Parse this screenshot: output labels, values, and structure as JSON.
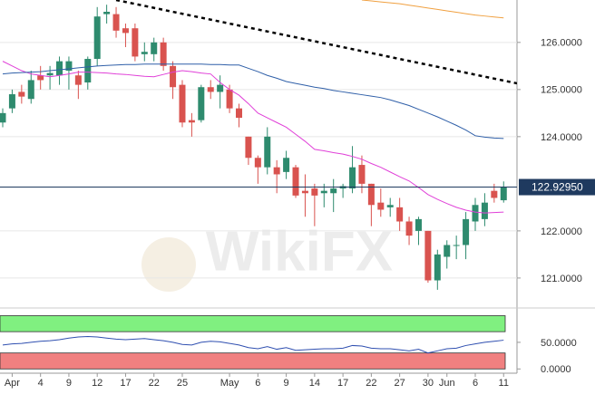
{
  "chart_data": [
    {
      "type": "candlestick",
      "categories": [
        null,
        "Apr",
        null,
        null,
        "4",
        null,
        null,
        "9",
        null,
        null,
        "12",
        null,
        null,
        "17",
        null,
        null,
        "22",
        null,
        null,
        "25",
        null,
        null,
        null,
        null,
        "May",
        null,
        null,
        "6",
        null,
        null,
        "9",
        null,
        null,
        "14",
        null,
        null,
        "17",
        null,
        null,
        "22",
        null,
        null,
        "27",
        null,
        null,
        "30",
        null,
        "Jun",
        null,
        null,
        "6",
        null,
        null,
        "11"
      ],
      "open": [
        124.3,
        124.6,
        124.95,
        124.8,
        125.3,
        125.3,
        125.3,
        125.4,
        125.3,
        125.15,
        125.65,
        126.6,
        126.6,
        126.3,
        126.3,
        125.75,
        125.75,
        126.0,
        125.5,
        125.1,
        124.35,
        124.35,
        125.05,
        124.95,
        125.0,
        124.6,
        124.0,
        123.55,
        123.35,
        123.35,
        123.25,
        123.35,
        122.85,
        122.9,
        122.8,
        122.8,
        122.9,
        122.9,
        123.4,
        123.0,
        122.6,
        122.5,
        122.5,
        122.2,
        122.0,
        122.0,
        120.95,
        121.45,
        121.7,
        121.7,
        122.2,
        122.25,
        122.85,
        122.65
      ],
      "high": [
        124.6,
        125.0,
        125.1,
        125.4,
        125.5,
        125.5,
        125.7,
        125.7,
        125.4,
        125.7,
        126.75,
        126.8,
        126.75,
        126.4,
        126.4,
        126.0,
        126.1,
        126.1,
        125.6,
        125.2,
        124.5,
        125.1,
        125.2,
        125.3,
        125.1,
        124.7,
        124.0,
        123.6,
        124.2,
        123.5,
        123.7,
        123.4,
        123.2,
        123.0,
        123.0,
        123.1,
        123.0,
        123.8,
        123.6,
        123.0,
        122.9,
        122.7,
        122.7,
        122.3,
        122.3,
        122.0,
        121.6,
        121.8,
        121.9,
        122.4,
        122.7,
        122.8,
        123.0,
        123.05
      ],
      "low": [
        124.2,
        124.5,
        124.7,
        124.7,
        125.0,
        125.0,
        125.1,
        125.0,
        124.8,
        125.0,
        125.5,
        126.4,
        126.1,
        125.9,
        125.6,
        125.6,
        125.6,
        125.4,
        124.8,
        124.2,
        124.0,
        124.3,
        124.8,
        124.6,
        124.5,
        124.2,
        123.4,
        123.0,
        123.2,
        122.8,
        123.1,
        122.7,
        122.3,
        122.1,
        122.5,
        122.4,
        122.7,
        122.8,
        122.8,
        122.1,
        122.3,
        122.3,
        122.0,
        121.7,
        121.7,
        120.9,
        120.75,
        121.2,
        121.4,
        121.4,
        122.0,
        122.1,
        122.6,
        122.6
      ],
      "close": [
        124.5,
        124.9,
        124.85,
        125.2,
        125.2,
        125.35,
        125.6,
        125.6,
        125.1,
        125.65,
        126.55,
        126.65,
        126.25,
        126.2,
        125.7,
        125.8,
        126.0,
        125.5,
        125.05,
        124.3,
        124.3,
        125.05,
        124.95,
        125.1,
        124.6,
        124.4,
        123.55,
        123.35,
        124.0,
        123.2,
        123.55,
        122.75,
        122.8,
        122.75,
        122.85,
        122.9,
        122.95,
        123.35,
        123.0,
        122.55,
        122.45,
        122.55,
        122.2,
        121.9,
        122.25,
        120.95,
        121.5,
        121.7,
        121.7,
        122.25,
        122.55,
        122.6,
        122.7,
        122.93
      ],
      "up_color": "#2e8b6e",
      "down_color": "#d9534f",
      "series": [
        {
          "color": "#e040d8",
          "values": [
            125.6,
            125.5,
            125.4,
            125.33,
            125.3,
            125.27,
            125.3,
            125.33,
            125.37,
            125.37,
            125.36,
            125.35,
            125.33,
            125.32,
            125.3,
            125.28,
            125.27,
            125.32,
            125.37,
            125.4,
            125.38,
            125.35,
            125.33,
            125.15,
            125.0,
            124.88,
            124.7,
            124.5,
            124.4,
            124.3,
            124.2,
            124.05,
            123.9,
            123.73,
            123.7,
            123.66,
            123.63,
            123.58,
            123.52,
            123.43,
            123.35,
            123.25,
            123.15,
            123.06,
            122.92,
            122.77,
            122.67,
            122.58,
            122.5,
            122.44,
            122.4,
            122.38,
            122.39,
            122.4
          ]
        },
        {
          "color": "#2f5fa8",
          "values": [
            125.33,
            125.35,
            125.36,
            125.37,
            125.38,
            125.4,
            125.42,
            125.44,
            125.46,
            125.48,
            125.5,
            125.51,
            125.52,
            125.53,
            125.53,
            125.54,
            125.54,
            125.54,
            125.54,
            125.54,
            125.54,
            125.54,
            125.53,
            125.53,
            125.52,
            125.52,
            125.45,
            125.38,
            125.3,
            125.24,
            125.17,
            125.13,
            125.09,
            125.05,
            125.02,
            124.98,
            124.95,
            124.92,
            124.89,
            124.86,
            124.83,
            124.78,
            124.72,
            124.66,
            124.58,
            124.5,
            124.42,
            124.33,
            124.24,
            124.14,
            124.02,
            123.99,
            123.97,
            123.96
          ]
        },
        {
          "color": "#f0a040",
          "values": [
            null,
            null,
            null,
            null,
            null,
            null,
            null,
            null,
            null,
            null,
            null,
            null,
            null,
            null,
            null,
            null,
            null,
            null,
            null,
            null,
            null,
            null,
            null,
            null,
            null,
            null,
            null,
            null,
            null,
            null,
            null,
            null,
            null,
            null,
            null,
            null,
            null,
            null,
            126.9,
            126.88,
            126.86,
            126.84,
            126.82,
            126.79,
            126.76,
            126.73,
            126.7,
            126.67,
            126.64,
            126.61,
            126.58,
            126.56,
            126.54,
            126.52
          ]
        }
      ],
      "trendline": {
        "points": [
          [
            12,
            126.9
          ],
          [
            53,
            125.19
          ]
        ],
        "color": "#000"
      },
      "current_price": {
        "value": 122.9295,
        "label": "122.92950"
      },
      "ylim": [
        120.46,
        126.9
      ],
      "yticks": [
        {
          "value": 121,
          "label": "121.0000"
        },
        {
          "value": 122,
          "label": "122.0000"
        },
        {
          "value": 124,
          "label": "124.0000"
        },
        {
          "value": 125,
          "label": "125.0000"
        },
        {
          "value": 126,
          "label": "126.0000"
        }
      ],
      "grid": true,
      "watermark": "WikiFX"
    },
    {
      "type": "line",
      "series": [
        {
          "color": "#2f4fb0",
          "values": [
            45,
            47,
            48,
            50,
            52,
            53,
            55,
            58,
            60,
            61,
            60,
            58,
            56,
            55,
            56,
            57,
            55,
            53,
            50,
            46,
            45,
            50,
            52,
            51,
            48,
            45,
            40,
            38,
            42,
            37,
            40,
            35,
            36,
            37,
            38,
            38,
            39,
            44,
            43,
            39,
            38,
            38,
            36,
            34,
            37,
            30,
            34,
            38,
            39,
            44,
            47,
            50,
            52,
            54
          ]
        }
      ],
      "zones": [
        {
          "from": 70,
          "to": 100,
          "color": "#80f080"
        },
        {
          "from": 0,
          "to": 30,
          "color": "#f08080"
        }
      ],
      "ylim": [
        -8,
        106
      ],
      "yticks": [
        {
          "value": 0,
          "label": "0.0000"
        },
        {
          "value": 50,
          "label": "50.0000"
        }
      ]
    }
  ]
}
